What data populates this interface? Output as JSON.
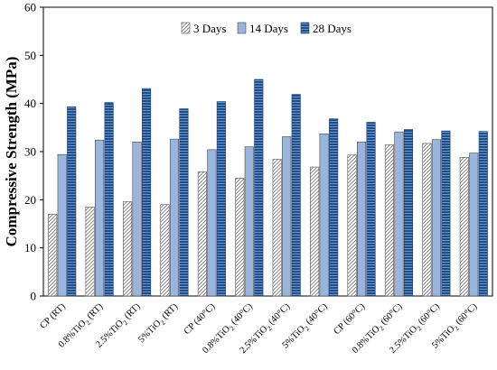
{
  "chart_data": {
    "type": "bar",
    "title": "",
    "xlabel": "",
    "ylabel": "Compressive Strength (MPa)",
    "ylim": [
      0,
      60
    ],
    "yticks": [
      0,
      10,
      20,
      30,
      40,
      50,
      60
    ],
    "grid": false,
    "legend_position": "top",
    "categories": [
      {
        "base": "CP (RT)",
        "sub": "",
        "tail": ""
      },
      {
        "base": "0.8%TiO",
        "sub": "2",
        "tail": " (RT)"
      },
      {
        "base": "2.5%TiO",
        "sub": "2",
        "tail": " (RT)"
      },
      {
        "base": "5%TiO",
        "sub": "2",
        "tail": " (RT)"
      },
      {
        "base": "CP (40°C)",
        "sub": "",
        "tail": ""
      },
      {
        "base": "0.8%TiO",
        "sub": "2",
        "tail": " (40°C)"
      },
      {
        "base": "2.5%TiO",
        "sub": "2",
        "tail": " (40°C)"
      },
      {
        "base": "5%TiO",
        "sub": "2",
        "tail": " (40°C)"
      },
      {
        "base": "CP (60°C)",
        "sub": "",
        "tail": ""
      },
      {
        "base": "0.8%TiO",
        "sub": "2",
        "tail": " (60°C)"
      },
      {
        "base": "2.5%TiO",
        "sub": "2",
        "tail": " (60°C)"
      },
      {
        "base": "5%TiO",
        "sub": "2",
        "tail": " (60°C)"
      }
    ],
    "series": [
      {
        "name": "3 Days",
        "color": "#ffffff",
        "pattern": "diagonal-hatch",
        "values": [
          17.0,
          18.5,
          19.6,
          19.0,
          25.8,
          24.5,
          28.4,
          26.8,
          29.3,
          31.4,
          31.7,
          28.8
        ]
      },
      {
        "name": "14 Days",
        "color": "#9ab5dc",
        "pattern": "solid",
        "values": [
          29.4,
          32.4,
          32.0,
          32.6,
          30.4,
          31.0,
          33.1,
          33.7,
          32.0,
          34.1,
          32.5,
          29.7
        ]
      },
      {
        "name": "28 Days",
        "color": "#1f4e8c",
        "pattern": "horizontal-stripes",
        "values": [
          39.3,
          40.2,
          43.1,
          38.9,
          40.4,
          45.0,
          41.9,
          36.8,
          36.1,
          34.6,
          34.3,
          34.2
        ]
      }
    ]
  }
}
